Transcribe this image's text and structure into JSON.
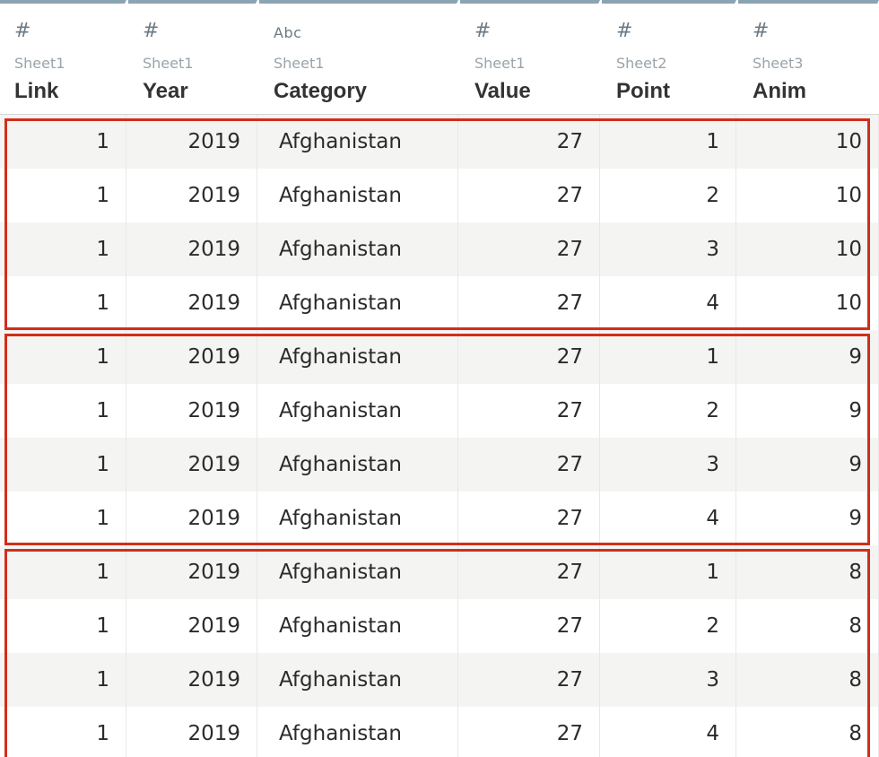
{
  "columns": [
    {
      "key": "link",
      "type_icon": "#",
      "type_icon_name": "number-type-icon",
      "source": "Sheet1",
      "name": "Link",
      "align": "num"
    },
    {
      "key": "year",
      "type_icon": "#",
      "type_icon_name": "number-type-icon",
      "source": "Sheet1",
      "name": "Year",
      "align": "num"
    },
    {
      "key": "category",
      "type_icon": "Abc",
      "type_icon_name": "string-type-icon",
      "source": "Sheet1",
      "name": "Category",
      "align": "txt"
    },
    {
      "key": "value",
      "type_icon": "#",
      "type_icon_name": "number-type-icon",
      "source": "Sheet1",
      "name": "Value",
      "align": "num"
    },
    {
      "key": "point",
      "type_icon": "#",
      "type_icon_name": "number-type-icon",
      "source": "Sheet2",
      "name": "Point",
      "align": "num"
    },
    {
      "key": "anim",
      "type_icon": "#",
      "type_icon_name": "number-type-icon",
      "source": "Sheet3",
      "name": "Anim",
      "align": "num"
    }
  ],
  "rows": [
    [
      "1",
      "2019",
      "Afghanistan",
      "27",
      "1",
      "10"
    ],
    [
      "1",
      "2019",
      "Afghanistan",
      "27",
      "2",
      "10"
    ],
    [
      "1",
      "2019",
      "Afghanistan",
      "27",
      "3",
      "10"
    ],
    [
      "1",
      "2019",
      "Afghanistan",
      "27",
      "4",
      "10"
    ],
    [
      "1",
      "2019",
      "Afghanistan",
      "27",
      "1",
      "9"
    ],
    [
      "1",
      "2019",
      "Afghanistan",
      "27",
      "2",
      "9"
    ],
    [
      "1",
      "2019",
      "Afghanistan",
      "27",
      "3",
      "9"
    ],
    [
      "1",
      "2019",
      "Afghanistan",
      "27",
      "4",
      "9"
    ],
    [
      "1",
      "2019",
      "Afghanistan",
      "27",
      "1",
      "8"
    ],
    [
      "1",
      "2019",
      "Afghanistan",
      "27",
      "2",
      "8"
    ],
    [
      "1",
      "2019",
      "Afghanistan",
      "27",
      "3",
      "8"
    ],
    [
      "1",
      "2019",
      "Afghanistan",
      "27",
      "4",
      "8"
    ]
  ],
  "highlight_groups": [
    {
      "first_row": 1,
      "last_row": 4
    },
    {
      "first_row": 5,
      "last_row": 8
    },
    {
      "first_row": 9,
      "last_row": 12
    }
  ],
  "colors": {
    "header_accent": "#8aa4b3",
    "highlight": "#d12e1b",
    "row_shade": "#f4f4f3"
  }
}
